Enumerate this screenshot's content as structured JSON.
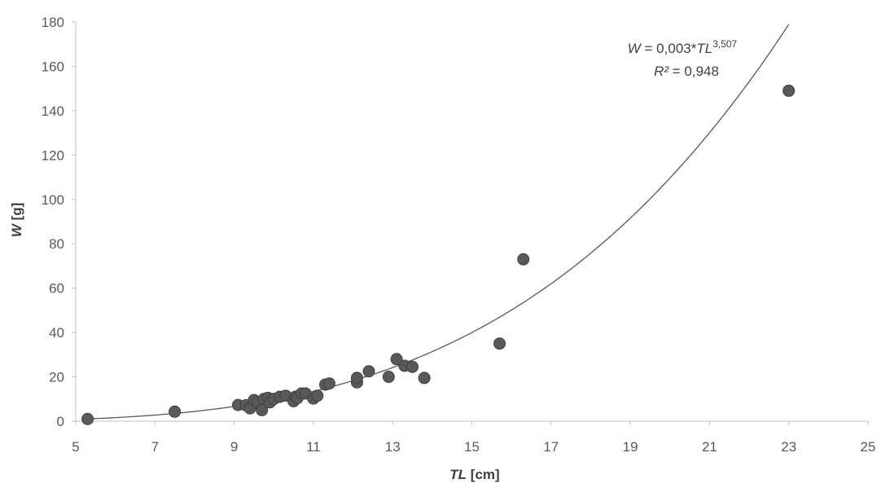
{
  "chart_data": {
    "type": "scatter",
    "title": "",
    "xlabel": {
      "var": "TL",
      "unit": " [cm]"
    },
    "ylabel": {
      "var": "W",
      "unit": " [g]"
    },
    "xlim": [
      5,
      25
    ],
    "ylim": [
      0,
      180
    ],
    "xticks": [
      5,
      7,
      9,
      11,
      13,
      15,
      17,
      19,
      21,
      23,
      25
    ],
    "yticks": [
      0,
      20,
      40,
      60,
      80,
      100,
      120,
      140,
      160,
      180
    ],
    "grid": false,
    "legend": "none",
    "colors": {
      "points": "#595959",
      "line": "#595959",
      "axis": "#bfbfbf",
      "text": "#595959"
    },
    "series": [
      {
        "points": [
          [
            5.3,
            1
          ],
          [
            7.5,
            4.3
          ],
          [
            9.1,
            7.3
          ],
          [
            9.3,
            7.2
          ],
          [
            9.4,
            5.8
          ],
          [
            9.5,
            9.5
          ],
          [
            9.6,
            8.5
          ],
          [
            9.7,
            5
          ],
          [
            9.75,
            10
          ],
          [
            9.85,
            10.5
          ],
          [
            9.9,
            8.5
          ],
          [
            10.0,
            10
          ],
          [
            10.15,
            11
          ],
          [
            10.3,
            11.5
          ],
          [
            10.5,
            9
          ],
          [
            10.55,
            11
          ],
          [
            10.6,
            10.5
          ],
          [
            10.7,
            12.5
          ],
          [
            10.8,
            12.5
          ],
          [
            11.0,
            10.2
          ],
          [
            11.1,
            11.5
          ],
          [
            11.3,
            16.5
          ],
          [
            11.4,
            17
          ],
          [
            12.1,
            17.5
          ],
          [
            12.1,
            19.5
          ],
          [
            12.4,
            22.5
          ],
          [
            12.9,
            20
          ],
          [
            13.1,
            28
          ],
          [
            13.3,
            25
          ],
          [
            13.5,
            24.5
          ],
          [
            13.8,
            19.5
          ],
          [
            15.7,
            35
          ],
          [
            16.3,
            73
          ],
          [
            23.0,
            149
          ]
        ]
      }
    ],
    "trendline": {
      "type": "power",
      "coefficient": 0.003,
      "exponent": 3.507,
      "x_range": [
        5.3,
        23.0
      ],
      "equation": {
        "lhs": "W",
        "mid": " = 0,003*",
        "var": "TL",
        "exp": "3,507"
      },
      "r2": {
        "sym": "R²",
        "val": " = 0,948"
      }
    }
  }
}
